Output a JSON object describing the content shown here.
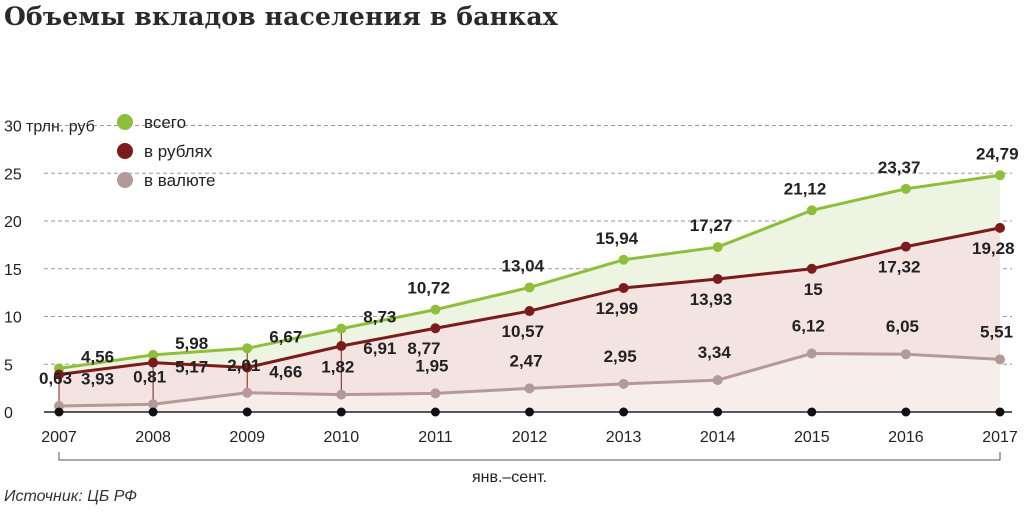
{
  "title": "Объемы вкладов населения в банках",
  "source": "Источник: ЦБ РФ",
  "chart_data": {
    "type": "line",
    "title": "Объемы вкладов населения в банках",
    "ylabel": "трлн. руб",
    "ylim": [
      0,
      30
    ],
    "yticks": [
      0,
      5,
      10,
      15,
      20,
      25,
      30
    ],
    "grid": true,
    "legend_position": "top-left",
    "categories": [
      "2007",
      "2008",
      "2009",
      "2010",
      "2011",
      "2012",
      "2013",
      "2014",
      "2015",
      "2016",
      "2017"
    ],
    "period_note": "янв.–сент.",
    "series": [
      {
        "name": "всего",
        "color": "#8dbf3a",
        "values": [
          4.56,
          5.98,
          6.67,
          8.73,
          10.72,
          13.04,
          15.94,
          17.27,
          21.12,
          23.37,
          24.79
        ],
        "labels": [
          "4,56",
          "5,98",
          "6,67",
          "8,73",
          "10,72",
          "13,04",
          "15,94",
          "17,27",
          "21,12",
          "23,37",
          "24,79"
        ]
      },
      {
        "name": "в рублях",
        "color": "#7b1c1c",
        "values": [
          3.93,
          5.17,
          4.66,
          6.91,
          8.77,
          10.57,
          12.99,
          13.93,
          15,
          17.32,
          19.28
        ],
        "labels": [
          "3,93",
          "5,17",
          "4,66",
          "6,91",
          "8,77",
          "10,57",
          "12,99",
          "13,93",
          "15",
          "17,32",
          "19,28"
        ]
      },
      {
        "name": "в валюте",
        "color": "#b39a98",
        "values": [
          0.63,
          0.81,
          2.01,
          1.82,
          1.95,
          2.47,
          2.95,
          3.34,
          6.12,
          6.05,
          5.51
        ],
        "labels": [
          "0,63",
          "0,81",
          "2,01",
          "1,82",
          "1,95",
          "2,47",
          "2,95",
          "3,34",
          "6,12",
          "6,05",
          "5,51"
        ]
      }
    ]
  }
}
